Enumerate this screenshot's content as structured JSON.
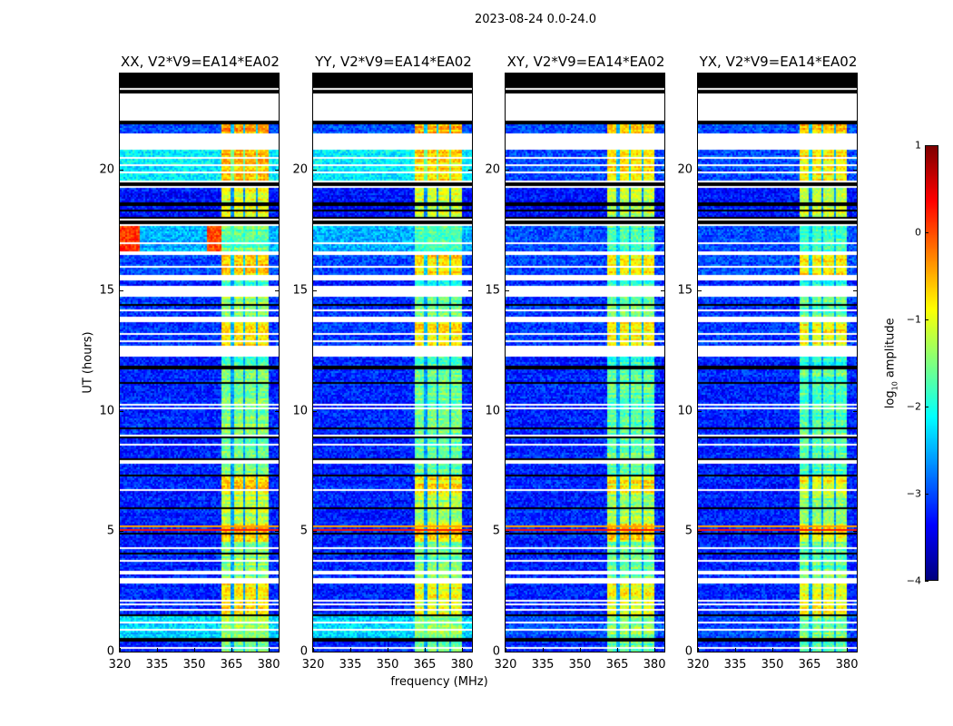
{
  "chart_data": {
    "type": "heatmap",
    "title": "2023-08-24 0.0-24.0",
    "xlabel": "frequency (MHz)",
    "ylabel": "UT (hours)",
    "xlim": [
      320,
      384
    ],
    "ylim": [
      0,
      24
    ],
    "xticks": [
      "320",
      "335",
      "350",
      "365",
      "380"
    ],
    "xtick_values": [
      320,
      335,
      350,
      365,
      380
    ],
    "yticks": [
      "0",
      "5",
      "10",
      "15",
      "20"
    ],
    "ytick_values": [
      0,
      5,
      10,
      15,
      20
    ],
    "colorbar": {
      "label_main": "log",
      "label_sub": "10",
      "label_rest": " amplitude",
      "range": [
        -4,
        1
      ],
      "ticks": [
        "−4",
        "−3",
        "−2",
        "−1",
        "0",
        "1"
      ],
      "tick_values": [
        -4,
        -3,
        -2,
        -1,
        0,
        1
      ],
      "colormap": "jet"
    },
    "bright_band_mhz": [
      360.5,
      380
    ],
    "band_gaps_mhz": [
      365,
      370,
      375
    ],
    "time_segments": [
      [
        23.43,
        24.0,
        "black"
      ],
      [
        23.13,
        23.43,
        "stripes"
      ],
      [
        22.04,
        23.13,
        "white"
      ],
      [
        21.89,
        22.04,
        "black"
      ],
      [
        21.55,
        21.89,
        "data",
        -3.0,
        -0.4
      ],
      [
        20.88,
        21.55,
        "white"
      ],
      [
        19.56,
        20.88,
        "data",
        -2.2,
        -0.6
      ],
      [
        19.3,
        19.56,
        "stripes"
      ],
      [
        18.1,
        19.3,
        "data",
        -3.3,
        -1.0
      ],
      [
        17.69,
        18.1,
        "stripes"
      ],
      [
        16.67,
        17.69,
        "data",
        -2.5,
        -1.6
      ],
      [
        16.52,
        16.67,
        "white"
      ],
      [
        15.66,
        16.52,
        "data",
        -3.0,
        -0.6
      ],
      [
        15.43,
        15.66,
        "white"
      ],
      [
        15.24,
        15.43,
        "data",
        -3.2,
        -1.8
      ],
      [
        14.72,
        15.24,
        "white"
      ],
      [
        13.93,
        14.72,
        "data",
        -3.1,
        -1.4
      ],
      [
        13.67,
        13.93,
        "white"
      ],
      [
        12.73,
        13.67,
        "data",
        -3.1,
        -0.7
      ],
      [
        12.28,
        12.73,
        "white"
      ],
      [
        11.87,
        12.28,
        "data",
        -3.2,
        -1.7
      ],
      [
        11.75,
        11.87,
        "black"
      ],
      [
        7.28,
        11.75,
        "data",
        -3.2,
        -1.5
      ],
      [
        6.53,
        7.28,
        "data",
        -3.2,
        -0.7
      ],
      [
        5.3,
        6.53,
        "data",
        -3.2,
        -1.2
      ],
      [
        4.6,
        5.3,
        "data",
        -3.2,
        -0.6
      ],
      [
        3.08,
        4.6,
        "data",
        -3.2,
        -1.4
      ],
      [
        2.85,
        3.08,
        "white"
      ],
      [
        1.58,
        2.85,
        "data",
        -3.2,
        -0.8
      ],
      [
        1.46,
        1.58,
        "black"
      ],
      [
        0.6,
        1.46,
        "data",
        -2.3,
        -1.3
      ],
      [
        0.45,
        0.6,
        "black"
      ],
      [
        0.0,
        0.45,
        "data",
        -3.2,
        -1.5
      ]
    ],
    "white_lines_hours": [
      20.5,
      20.2,
      19.9,
      17.0,
      16.0,
      14.2,
      13.2,
      12.9,
      10.25,
      10.1,
      9.0,
      8.6,
      7.9,
      6.7,
      4.3,
      3.8,
      3.3,
      2.1,
      1.95,
      1.75,
      1.2,
      0.9,
      0.15
    ],
    "black_lines_hours": [
      18.6,
      18.3,
      14.4,
      11.2,
      9.3,
      8.9,
      8.0,
      7.3,
      6.0,
      4.9,
      4.1,
      0.5
    ],
    "line_features": [
      {
        "hours": 5.22,
        "level": -0.4
      },
      {
        "hours": 5.07,
        "level": 0.3
      }
    ],
    "panels": [
      {
        "title": "XX, V2*V9=EA14*EA02",
        "band_shift": 0.0,
        "bg_overrides": [],
        "hot_patches": [
          [
            16.67,
            17.69,
            320,
            328,
            0.1
          ],
          [
            16.67,
            17.69,
            355,
            360.5,
            0.0
          ]
        ]
      },
      {
        "title": "YY, V2*V9=EA14*EA02",
        "band_shift": -0.1,
        "bg_overrides": [],
        "hot_patches": []
      },
      {
        "title": "XY, V2*V9=EA14*EA02",
        "band_shift": -0.15,
        "bg_overrides": [
          [
            19.56,
            20.88,
            -3.0
          ],
          [
            0.6,
            1.46,
            -3.0
          ],
          [
            16.67,
            17.69,
            -3.0
          ]
        ],
        "hot_patches": []
      },
      {
        "title": "YX, V2*V9=EA14*EA02",
        "band_shift": -0.2,
        "bg_overrides": [
          [
            19.56,
            20.88,
            -3.0
          ],
          [
            0.6,
            1.46,
            -3.0
          ],
          [
            16.67,
            17.69,
            -3.0
          ]
        ],
        "hot_patches": []
      }
    ]
  }
}
